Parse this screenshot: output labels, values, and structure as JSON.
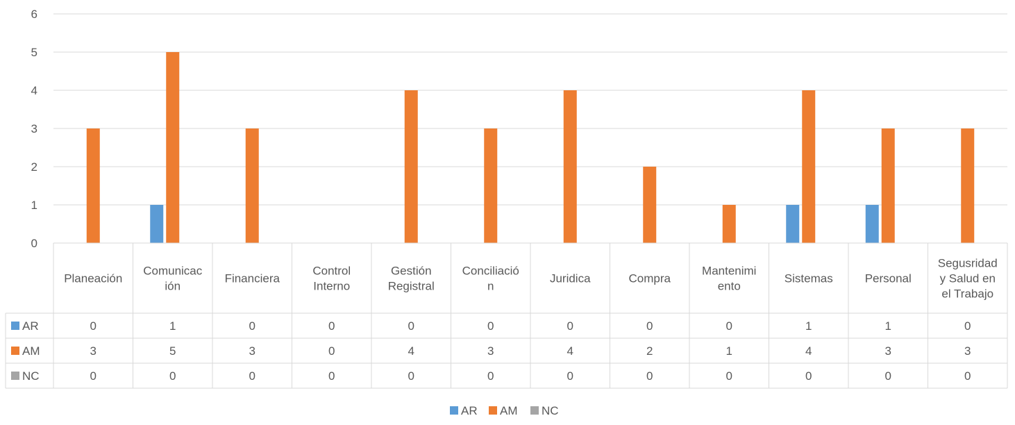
{
  "chart_data": {
    "type": "bar",
    "title": "",
    "xlabel": "",
    "ylabel": "",
    "ylim": [
      0,
      6
    ],
    "yticks": [
      0,
      1,
      2,
      3,
      4,
      5,
      6
    ],
    "grid": true,
    "legend_position": "bottom",
    "has_data_table": true,
    "categories": [
      "Planeación",
      "Comunicac ión",
      "Financiera",
      "Control Interno",
      "Gestión Registral",
      "Conciliació n",
      "Juridica",
      "Compra",
      "Mantenimi ento",
      "Sistemas",
      "Personal",
      "Segusridad y Salud en el Trabajo"
    ],
    "category_lines": [
      [
        "Planeación"
      ],
      [
        "Comunicac",
        "ión"
      ],
      [
        "Financiera"
      ],
      [
        "Control",
        "Interno"
      ],
      [
        "Gestión",
        "Registral"
      ],
      [
        "Conciliació",
        "n"
      ],
      [
        "Juridica"
      ],
      [
        "Compra"
      ],
      [
        "Mantenimi",
        "ento"
      ],
      [
        "Sistemas"
      ],
      [
        "Personal"
      ],
      [
        "Segusridad",
        "y Salud en",
        "el Trabajo"
      ]
    ],
    "series": [
      {
        "name": "AR",
        "color": "#5b9bd5",
        "values": [
          0,
          1,
          0,
          0,
          0,
          0,
          0,
          0,
          0,
          1,
          1,
          0
        ]
      },
      {
        "name": "AM",
        "color": "#ed7d31",
        "values": [
          3,
          5,
          3,
          0,
          4,
          3,
          4,
          2,
          1,
          4,
          3,
          3
        ]
      },
      {
        "name": "NC",
        "color": "#a5a5a5",
        "values": [
          0,
          0,
          0,
          0,
          0,
          0,
          0,
          0,
          0,
          0,
          0,
          0
        ]
      }
    ],
    "colors": {
      "gridline": "#d9d9d9",
      "table_border": "#d9d9d9",
      "text": "#595959"
    }
  }
}
